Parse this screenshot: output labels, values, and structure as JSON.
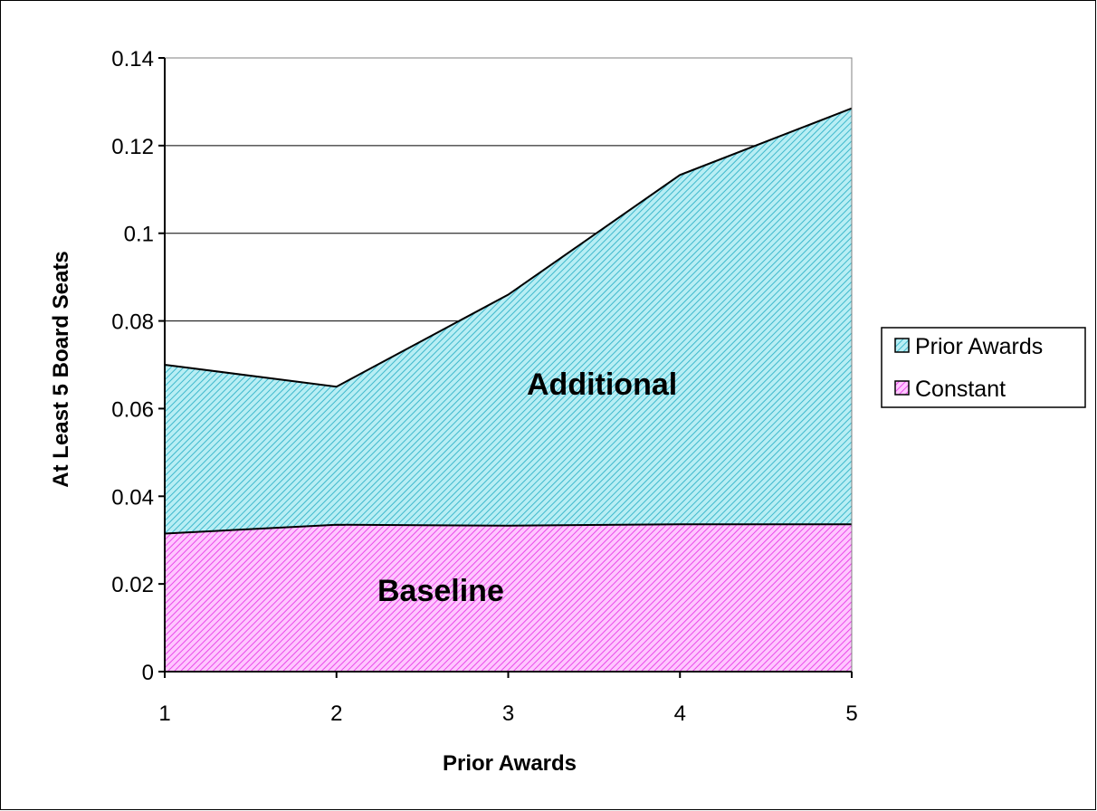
{
  "chart_data": {
    "type": "area",
    "stacked": true,
    "x": [
      1,
      2,
      3,
      4,
      5
    ],
    "xlabel": "Prior Awards",
    "ylabel": "At Least 5 Board Seats",
    "ylim": [
      0,
      0.14
    ],
    "yticks": [
      0,
      0.02,
      0.04,
      0.06,
      0.08,
      0.1,
      0.12,
      0.14
    ],
    "ytick_labels": [
      "0",
      "0.02",
      "0.04",
      "0.06",
      "0.08",
      "0.1",
      "0.12",
      "0.14"
    ],
    "xtick_labels": [
      "1",
      "2",
      "3",
      "4",
      "5"
    ],
    "grid": "horizontal",
    "legend_position": "right",
    "series": [
      {
        "name": "Constant",
        "values": [
          0.0315,
          0.0335,
          0.0333,
          0.0336,
          0.0336
        ],
        "color": "#ff66ff",
        "pattern": "diagonal-hatch"
      },
      {
        "name": "Prior Awards",
        "values": [
          0.0385,
          0.0315,
          0.0527,
          0.0797,
          0.0949
        ],
        "color": "#66d9e8",
        "pattern": "diagonal-hatch"
      }
    ],
    "legend": [
      "Prior Awards",
      "Constant"
    ],
    "annotations": [
      "Additional",
      "Baseline"
    ]
  }
}
